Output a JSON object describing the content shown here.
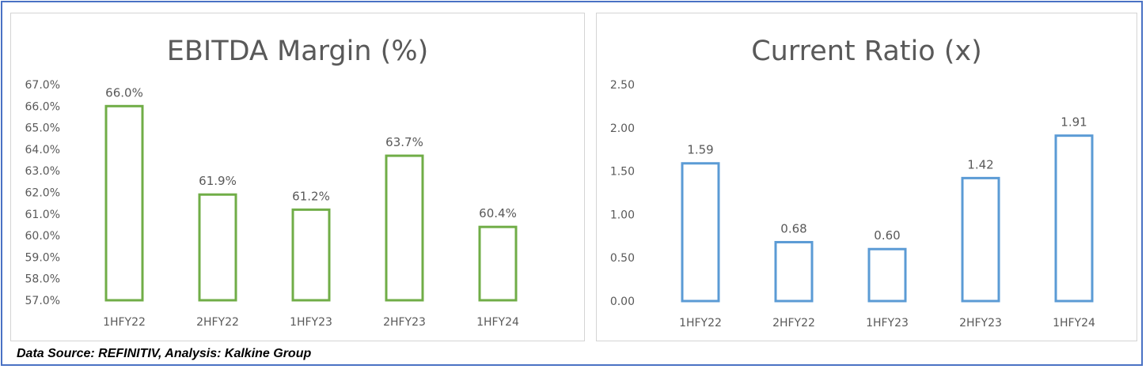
{
  "source_note": "Data Source: REFINITIV, Analysis: Kalkine Group",
  "chart_data": [
    {
      "type": "bar",
      "title": "EBITDA Margin (%)",
      "categories": [
        "1HFY22",
        "2HFY22",
        "1HFY23",
        "2HFY23",
        "1HFY24"
      ],
      "values": [
        66.0,
        61.9,
        61.2,
        63.7,
        60.4
      ],
      "value_labels": [
        "66.0%",
        "61.9%",
        "61.2%",
        "63.7%",
        "60.4%"
      ],
      "ylim": [
        57.0,
        67.0
      ],
      "yticks": [
        "57.0%",
        "58.0%",
        "59.0%",
        "60.0%",
        "61.0%",
        "62.0%",
        "63.0%",
        "64.0%",
        "65.0%",
        "66.0%",
        "67.0%"
      ],
      "grid": false,
      "bar_style": "outline",
      "color": "#70ad47"
    },
    {
      "type": "bar",
      "title": "Current Ratio (x)",
      "categories": [
        "1HFY22",
        "2HFY22",
        "1HFY23",
        "2HFY23",
        "1HFY24"
      ],
      "values": [
        1.59,
        0.68,
        0.6,
        1.42,
        1.91
      ],
      "value_labels": [
        "1.59",
        "0.68",
        "0.60",
        "1.42",
        "1.91"
      ],
      "ylim": [
        0.0,
        2.5
      ],
      "yticks": [
        "0.00",
        "0.50",
        "1.00",
        "1.50",
        "2.00",
        "2.50"
      ],
      "grid": false,
      "bar_style": "outline",
      "color": "#5b9bd5"
    }
  ]
}
